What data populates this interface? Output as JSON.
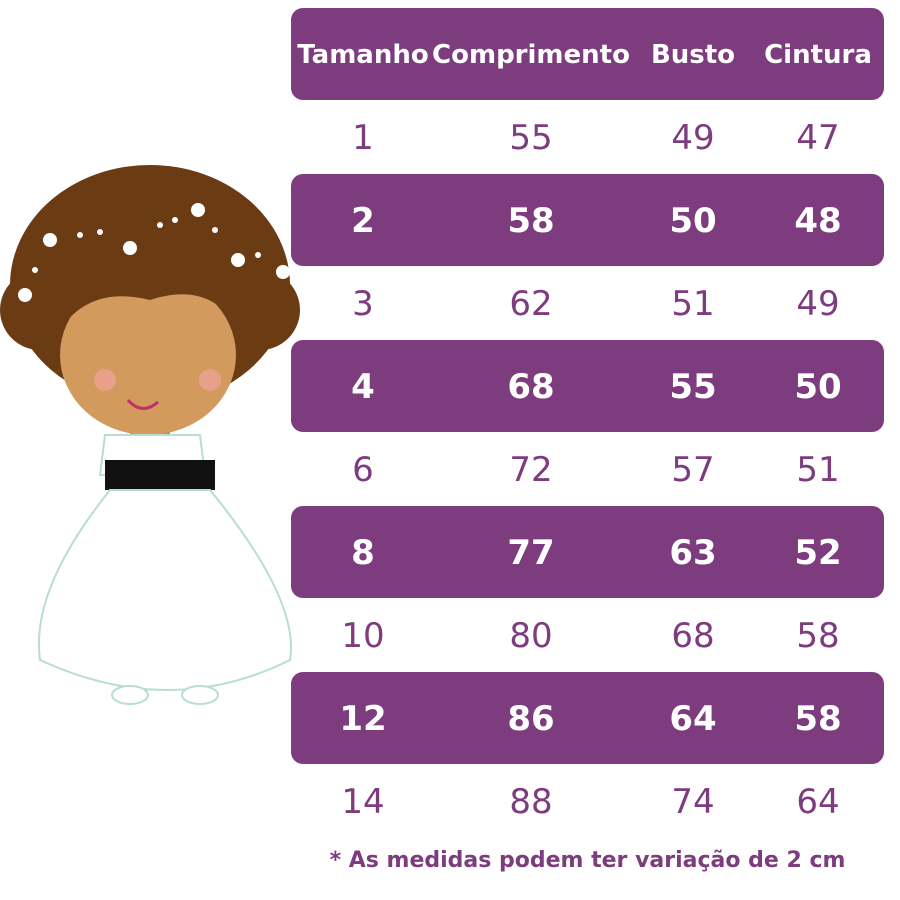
{
  "table": {
    "headers": [
      "Tamanho",
      "Comprimento",
      "Busto",
      "Cintura"
    ],
    "rows": [
      [
        "1",
        "55",
        "49",
        "47"
      ],
      [
        "2",
        "58",
        "50",
        "48"
      ],
      [
        "3",
        "62",
        "51",
        "49"
      ],
      [
        "4",
        "68",
        "55",
        "50"
      ],
      [
        "6",
        "72",
        "57",
        "51"
      ],
      [
        "8",
        "77",
        "63",
        "52"
      ],
      [
        "10",
        "80",
        "68",
        "58"
      ],
      [
        "12",
        "86",
        "64",
        "58"
      ],
      [
        "14",
        "88",
        "74",
        "64"
      ]
    ]
  },
  "footnote": "* As medidas podem ter variação de 2 cm",
  "colors": {
    "accent": "#7d3c7d",
    "text_on_accent": "#ffffff"
  },
  "illustration": "girl-in-white-dress-icon"
}
